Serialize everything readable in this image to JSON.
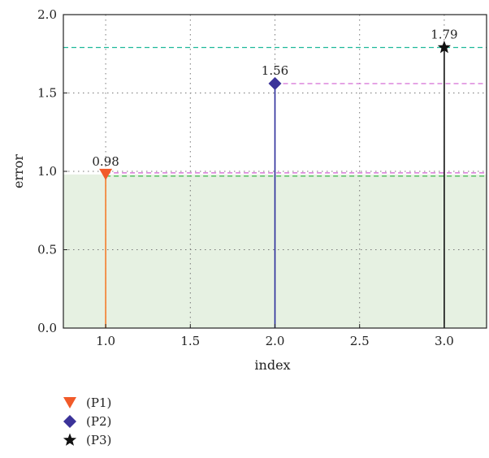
{
  "chart_data": {
    "type": "scatter",
    "xlabel": "index",
    "ylabel": "error",
    "xlim": [
      0.75,
      3.25
    ],
    "ylim": [
      0.0,
      2.0
    ],
    "x_ticks": [
      "1.0",
      "1.5",
      "2.0",
      "2.5",
      "3.0"
    ],
    "y_ticks": [
      "0.0",
      "0.5",
      "1.0",
      "1.5",
      "2.0"
    ],
    "grid": true,
    "legend_position": "below",
    "shaded_region": {
      "y_from": 0.0,
      "y_to": 0.98,
      "color": "#e6f1e2"
    },
    "series": [
      {
        "name": "(P1)",
        "x": 1.0,
        "y": 0.98,
        "label": "0.98",
        "marker": "triangle-down-icon",
        "color": "#f15a29",
        "stem_color": "#f47c2c",
        "hline_colors": [
          "#3fb94a",
          "#d05fd0"
        ]
      },
      {
        "name": "(P2)",
        "x": 2.0,
        "y": 1.56,
        "label": "1.56",
        "marker": "diamond-icon",
        "color": "#3b3399",
        "stem_color": "#2b2c9b",
        "hline_colors": [
          "#d05fd0"
        ]
      },
      {
        "name": "(P3)",
        "x": 3.0,
        "y": 1.79,
        "label": "1.79",
        "marker": "star-icon",
        "color": "#111111",
        "stem_color": "#111111",
        "hline_colors": [
          "#1fb89a"
        ]
      }
    ]
  }
}
